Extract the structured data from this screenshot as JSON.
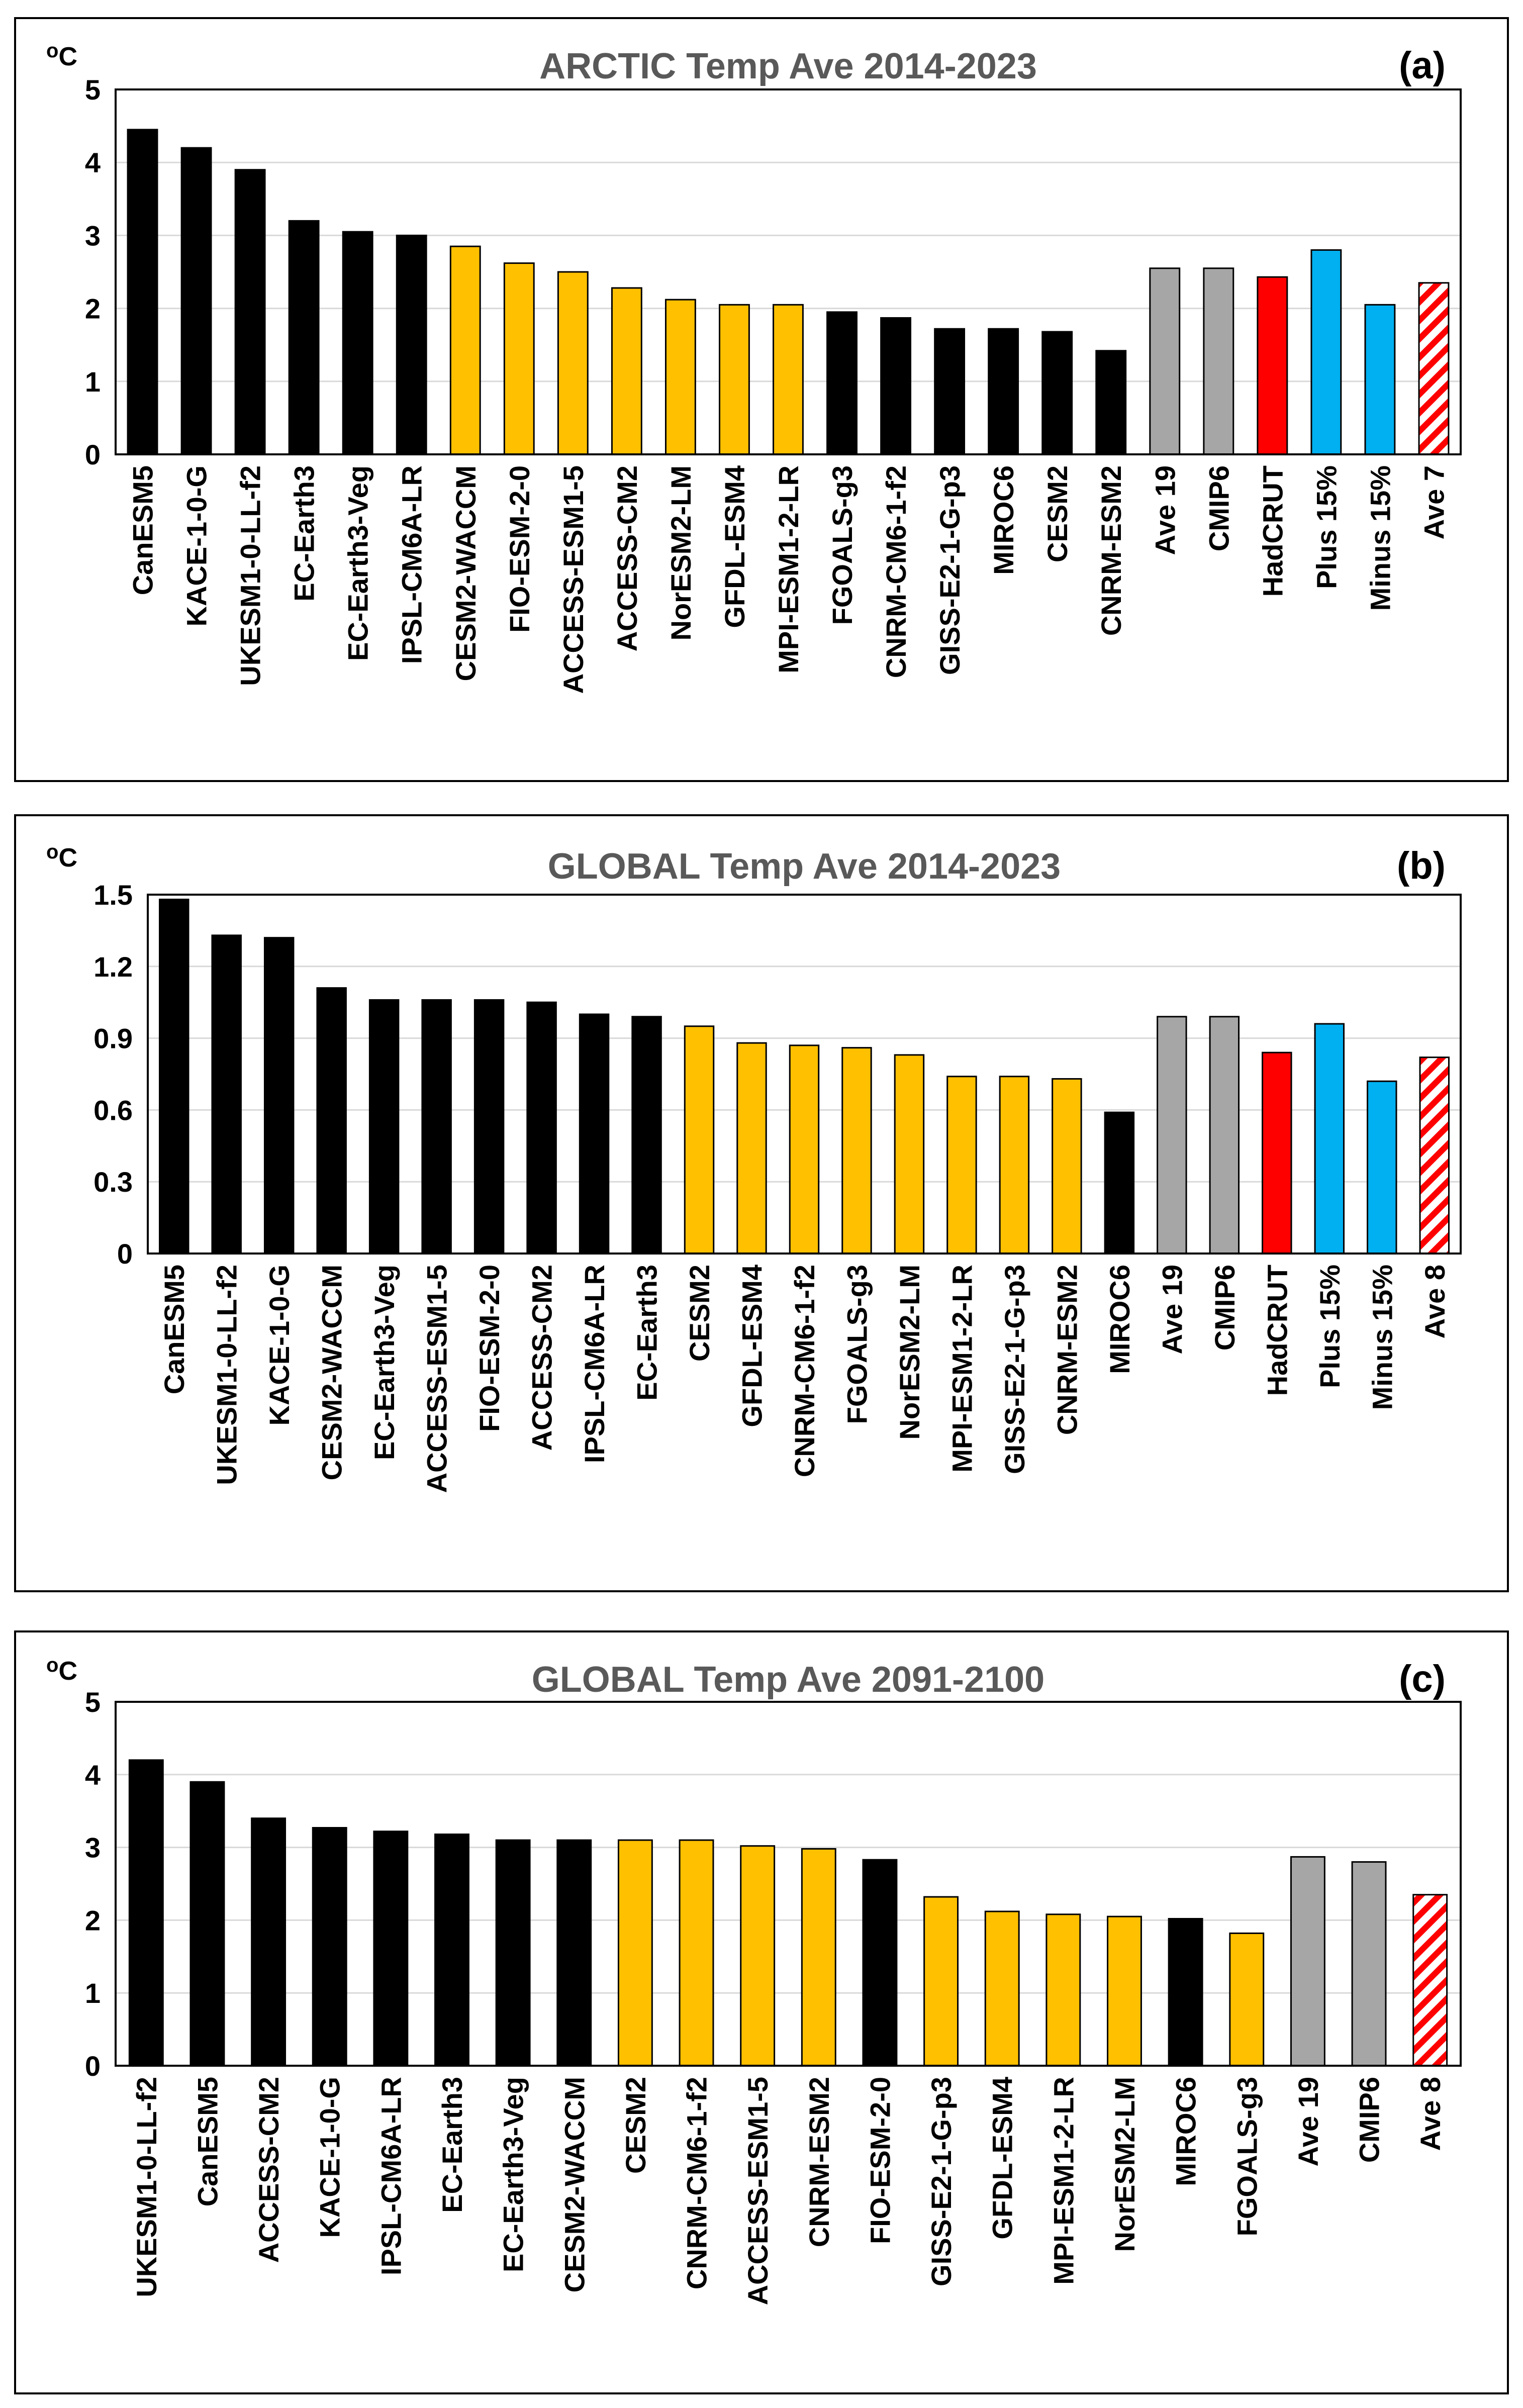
{
  "colors": {
    "black": "#000000",
    "orange": "#ffc000",
    "gray": "#a6a6a6",
    "red": "#ff0000",
    "blue": "#00b0f0",
    "hatch": "#ff0000",
    "title": "#595959",
    "grid": "#d9d9d9"
  },
  "chart_data": [
    {
      "type": "bar",
      "panel": "a",
      "title": "ARCTIC Temp Ave 2014-2023",
      "panel_label": "(a)",
      "unit": "oC",
      "ylim": [
        0,
        5
      ],
      "yticks": [
        "0",
        "1",
        "2",
        "3",
        "4",
        "5"
      ],
      "categories": [
        "CanESM5",
        "KACE-1-0-G",
        "UKESM1-0-LL-f2",
        "EC-Earth3",
        "EC-Earth3-Veg",
        "IPSL-CM6A-LR",
        "CESM2-WACCM",
        "FIO-ESM-2-0",
        "ACCESS-ESM1-5",
        "ACCESS-CM2",
        "NorESM2-LM",
        "GFDL-ESM4",
        "MPI-ESM1-2-LR",
        "FGOALS-g3",
        "CNRM-CM6-1-f2",
        "GISS-E2-1-G-p3",
        "MIROC6",
        "CESM2",
        "CNRM-ESM2",
        "Ave 19",
        "CMIP6",
        "HadCRUT",
        "Plus 15%",
        "Minus 15%",
        "Ave 7"
      ],
      "values": [
        4.45,
        4.2,
        3.9,
        3.2,
        3.05,
        3.0,
        2.85,
        2.62,
        2.5,
        2.28,
        2.12,
        2.05,
        2.05,
        1.95,
        1.87,
        1.72,
        1.72,
        1.68,
        1.42,
        2.55,
        2.55,
        2.43,
        2.8,
        2.05,
        2.35
      ],
      "colors": [
        "black",
        "black",
        "black",
        "black",
        "black",
        "black",
        "orange",
        "orange",
        "orange",
        "orange",
        "orange",
        "orange",
        "orange",
        "black",
        "black",
        "black",
        "black",
        "black",
        "black",
        "gray",
        "gray",
        "red",
        "blue",
        "blue",
        "hatch"
      ],
      "grid": true
    },
    {
      "type": "bar",
      "panel": "b",
      "title": "GLOBAL Temp Ave 2014-2023",
      "panel_label": "(b)",
      "unit": "oC",
      "ylim": [
        0,
        1.5
      ],
      "yticks": [
        "0",
        "0.3",
        "0.6",
        "0.9",
        "1.2",
        "1.5"
      ],
      "categories": [
        "CanESM5",
        "UKESM1-0-LL-f2",
        "KACE-1-0-G",
        "CESM2-WACCM",
        "EC-Earth3-Veg",
        "ACCESS-ESM1-5",
        "FIO-ESM-2-0",
        "ACCESS-CM2",
        "IPSL-CM6A-LR",
        "EC-Earth3",
        "CESM2",
        "GFDL-ESM4",
        "CNRM-CM6-1-f2",
        "FGOALS-g3",
        "NorESM2-LM",
        "MPI-ESM1-2-LR",
        "GISS-E2-1-G-p3",
        "CNRM-ESM2",
        "MIROC6",
        "Ave 19",
        "CMIP6",
        "HadCRUT",
        "Plus 15%",
        "Minus 15%",
        "Ave 8"
      ],
      "values": [
        1.48,
        1.33,
        1.32,
        1.11,
        1.06,
        1.06,
        1.06,
        1.05,
        1.0,
        0.99,
        0.95,
        0.88,
        0.87,
        0.86,
        0.83,
        0.74,
        0.74,
        0.73,
        0.59,
        0.99,
        0.99,
        0.84,
        0.96,
        0.72,
        0.82
      ],
      "colors": [
        "black",
        "black",
        "black",
        "black",
        "black",
        "black",
        "black",
        "black",
        "black",
        "black",
        "orange",
        "orange",
        "orange",
        "orange",
        "orange",
        "orange",
        "orange",
        "orange",
        "black",
        "gray",
        "gray",
        "red",
        "blue",
        "blue",
        "hatch"
      ],
      "grid": true
    },
    {
      "type": "bar",
      "panel": "c",
      "title": "GLOBAL Temp Ave 2091-2100",
      "panel_label": "(c)",
      "unit": "oC",
      "ylim": [
        0,
        5
      ],
      "yticks": [
        "0",
        "1",
        "2",
        "3",
        "4",
        "5"
      ],
      "categories": [
        "UKESM1-0-LL-f2",
        "CanESM5",
        "ACCESS-CM2",
        "KACE-1-0-G",
        "IPSL-CM6A-LR",
        "EC-Earth3",
        "EC-Earth3-Veg",
        "CESM2-WACCM",
        "CESM2",
        "CNRM-CM6-1-f2",
        "ACCESS-ESM1-5",
        "CNRM-ESM2",
        "FIO-ESM-2-0",
        "GISS-E2-1-G-p3",
        "GFDL-ESM4",
        "MPI-ESM1-2-LR",
        "NorESM2-LM",
        "MIROC6",
        "FGOALS-g3",
        "Ave 19",
        "CMIP6",
        "Ave 8"
      ],
      "values": [
        4.2,
        3.9,
        3.4,
        3.27,
        3.22,
        3.18,
        3.1,
        3.1,
        3.1,
        3.1,
        3.02,
        2.98,
        2.83,
        2.32,
        2.12,
        2.08,
        2.05,
        2.02,
        1.82,
        2.87,
        2.8,
        2.35
      ],
      "colors": [
        "black",
        "black",
        "black",
        "black",
        "black",
        "black",
        "black",
        "black",
        "orange",
        "orange",
        "orange",
        "orange",
        "black",
        "orange",
        "orange",
        "orange",
        "orange",
        "black",
        "orange",
        "gray",
        "gray",
        "hatch"
      ],
      "grid": true
    }
  ]
}
